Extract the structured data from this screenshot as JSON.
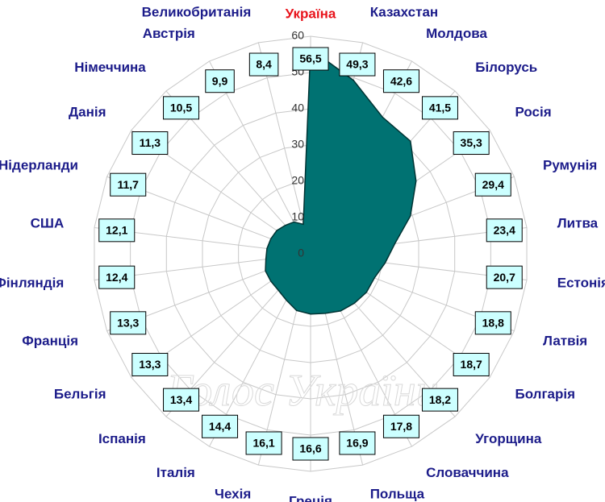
{
  "chart_data": {
    "type": "radar",
    "categories": [
      "Україна",
      "Казахстан",
      "Молдова",
      "Білорусь",
      "Росія",
      "Румунія",
      "Литва",
      "Естонія",
      "Латвія",
      "Болгарія",
      "Угорщина",
      "Словаччина",
      "Польща",
      "Греція",
      "Чехія",
      "Італія",
      "Іспанія",
      "Бельгія",
      "Франція",
      "Фінляндія",
      "США",
      "Нідерланди",
      "Данія",
      "Німеччина",
      "Австрія",
      "Великобританія"
    ],
    "values": [
      56.5,
      49.3,
      42.6,
      41.5,
      35.3,
      29.4,
      23.4,
      20.7,
      18.8,
      18.7,
      18.2,
      17.8,
      16.9,
      16.6,
      16.1,
      14.4,
      13.4,
      13.3,
      13.3,
      12.4,
      12.1,
      11.7,
      11.3,
      10.5,
      9.9,
      8.4
    ],
    "value_labels": [
      "56,5",
      "49,3",
      "42,6",
      "41,5",
      "35,3",
      "29,4",
      "23,4",
      "20,7",
      "18,8",
      "18,7",
      "18,2",
      "17,8",
      "16,9",
      "16,6",
      "16,1",
      "14,4",
      "13,4",
      "13,3",
      "13,3",
      "12,4",
      "12,1",
      "11,7",
      "11,3",
      "10,5",
      "9,9",
      "8,4"
    ],
    "color": "#007272",
    "highlight_color": "#e8141c",
    "label_color": "#1c1c8a",
    "ylim": [
      0,
      60
    ],
    "yticks": [
      0,
      10,
      20,
      30,
      40,
      50,
      60
    ],
    "grid": true,
    "watermark": "Голос України"
  }
}
